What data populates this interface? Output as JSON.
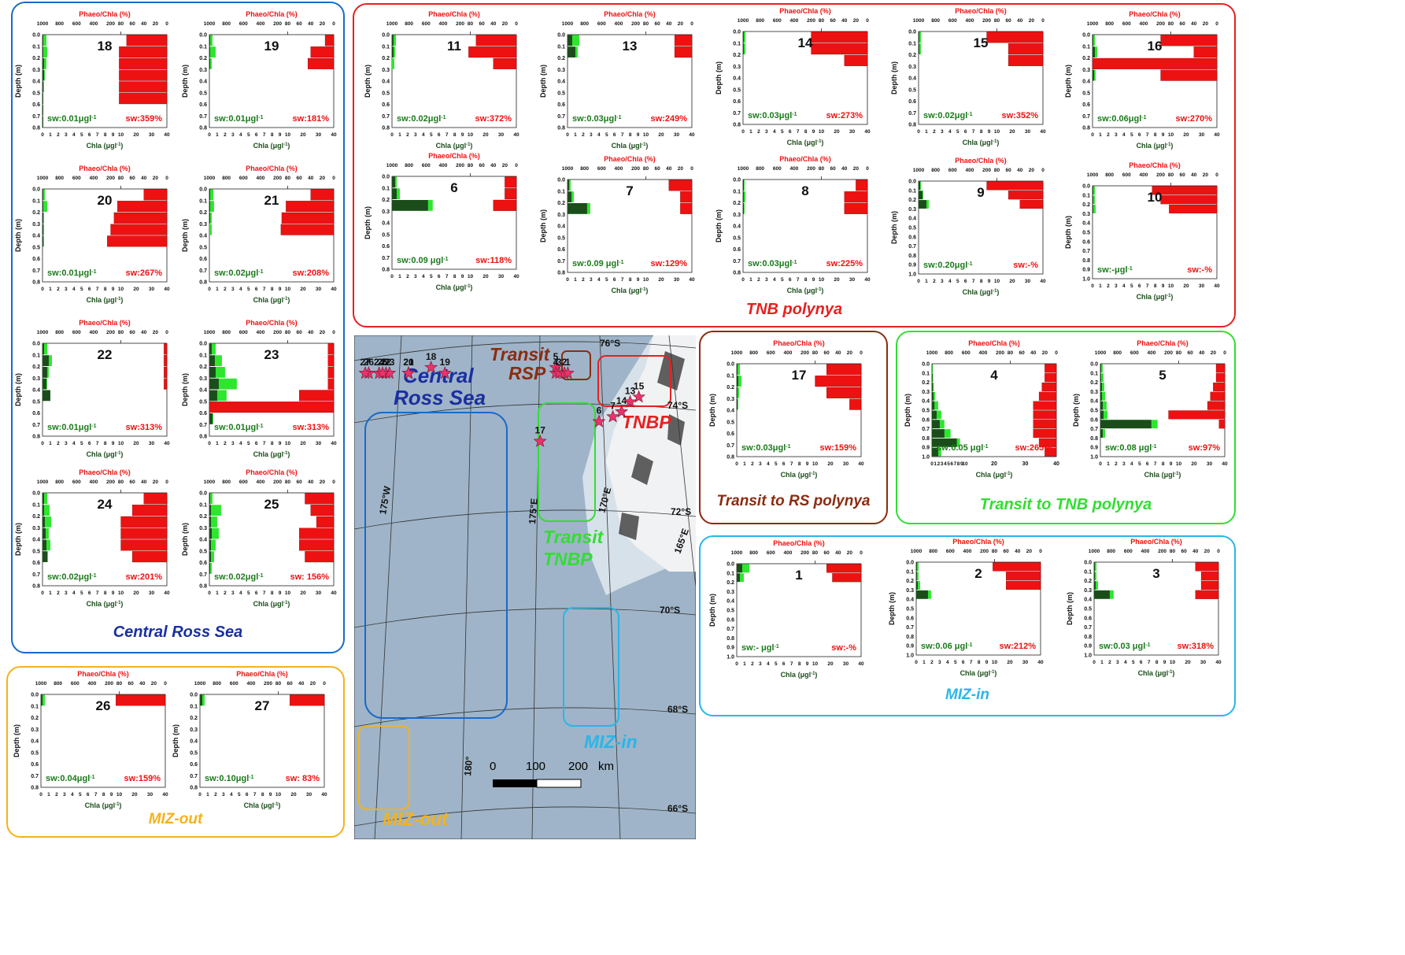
{
  "labels": {
    "phaeo_axis": "Phaeo/Chla (%)",
    "chla_axis": "Chla (μgl",
    "chla_sup": "-1",
    "chla_close": ")",
    "depth_axis": "Depth (m)",
    "phaeo_ticks": [
      "1000",
      "800",
      "600",
      "400",
      "200",
      "80",
      "60",
      "40",
      "20",
      "0"
    ],
    "chla_ticks": [
      "0",
      "1",
      "2",
      "3",
      "4",
      "5",
      "6",
      "7",
      "8",
      "9",
      "10",
      "20",
      "30",
      "40"
    ]
  },
  "colors": {
    "chla_dark": "#1b4d1b",
    "chla_light": "#2ee62e",
    "phaeo": "#ee1111",
    "central": "#1a6ac8",
    "tnb": "#e62020",
    "rsp": "#8b2c10",
    "transit_tnbp": "#33dd33",
    "miz_in": "#29b6e8",
    "miz_out": "#f5b21a"
  },
  "groups": [
    {
      "id": "central",
      "name": "Central Ross Sea"
    },
    {
      "id": "tnb",
      "name": "TNB polynya"
    },
    {
      "id": "rsp",
      "name": "Transit to RS polynya"
    },
    {
      "id": "transit_tnbp",
      "name": "Transit to TNB polynya"
    },
    {
      "id": "miz_in",
      "name": "MIZ-in"
    },
    {
      "id": "miz_out",
      "name": "MIZ-out"
    }
  ],
  "chart_data": [
    {
      "type": "bar",
      "station": "18",
      "group": "central",
      "ylim": [
        0,
        0.8
      ],
      "sw_chla": "sw:0.01μgl",
      "sw_phaeo": "sw:359%",
      "chla_dark": [
        0.1,
        0.1,
        0.2,
        0.2,
        0.1,
        0.1,
        0.1,
        0.1
      ],
      "chla_light": [
        0.5,
        0.6,
        0.5,
        0.3,
        0.2,
        0.1,
        0,
        0
      ],
      "phaeo": [
        70,
        100,
        100,
        100,
        100,
        100,
        0,
        0
      ]
    },
    {
      "type": "bar",
      "station": "19",
      "group": "central",
      "ylim": [
        0,
        0.8
      ],
      "sw_chla": "sw:0.01μgl",
      "sw_phaeo": "sw:181%",
      "chla_dark": [
        0.1,
        0.1,
        0.1,
        0,
        0,
        0,
        0,
        0
      ],
      "chla_light": [
        0.4,
        0.8,
        0.3,
        0,
        0,
        0,
        0,
        0
      ],
      "phaeo": [
        15,
        40,
        45,
        0,
        0,
        0,
        0,
        0
      ]
    },
    {
      "type": "bar",
      "station": "20",
      "group": "central",
      "ylim": [
        0,
        0.8
      ],
      "sw_chla": "sw:0.01μgl",
      "sw_phaeo": "sw:267%",
      "chla_dark": [
        0.1,
        0.1,
        0.1,
        0.1,
        0.1,
        0,
        0,
        0
      ],
      "chla_light": [
        0.3,
        0.6,
        0.2,
        0.2,
        0.2,
        0,
        0,
        0
      ],
      "phaeo": [
        40,
        120,
        160,
        200,
        240,
        0,
        0,
        0
      ]
    },
    {
      "type": "bar",
      "station": "21",
      "group": "central",
      "ylim": [
        0,
        0.8
      ],
      "sw_chla": "sw:0.02μgl",
      "sw_phaeo": "sw:208%",
      "chla_dark": [
        0.1,
        0.1,
        0.1,
        0,
        0,
        0,
        0,
        0
      ],
      "chla_light": [
        0.5,
        0.6,
        0.3,
        0.3,
        0,
        0,
        0,
        0
      ],
      "phaeo": [
        40,
        100,
        150,
        160,
        0,
        0,
        0,
        0
      ]
    },
    {
      "type": "bar",
      "station": "22",
      "group": "central",
      "ylim": [
        0,
        0.8
      ],
      "sw_chla": "sw:0.01μgl",
      "sw_phaeo": "sw:313%",
      "chla_dark": [
        0.2,
        0.8,
        0.6,
        0.5,
        1.0,
        0,
        0,
        0
      ],
      "chla_light": [
        0.6,
        1.2,
        0.8,
        0.6,
        0.3,
        0,
        0,
        0
      ],
      "phaeo": [
        5,
        5,
        5,
        5,
        0,
        0,
        0,
        0
      ]
    },
    {
      "type": "bar",
      "station": "23",
      "group": "central",
      "ylim": [
        0,
        0.8
      ],
      "sw_chla": "sw:0.01μgl",
      "sw_phaeo": "sw:313%",
      "chla_dark": [
        0.3,
        0.7,
        0.8,
        1.2,
        1.0,
        0.5,
        0.4,
        0
      ],
      "chla_light": [
        0.8,
        1.6,
        2.0,
        3.5,
        2.2,
        0.9,
        0.5,
        0
      ],
      "phaeo": [
        10,
        10,
        10,
        10,
        60,
        1000,
        0,
        0
      ]
    },
    {
      "type": "bar",
      "station": "24",
      "group": "central",
      "ylim": [
        0,
        0.8
      ],
      "sw_chla": "sw:0.02μgl",
      "sw_phaeo": "sw:201%",
      "chla_dark": [
        0.2,
        0.2,
        0.3,
        0.4,
        0.5,
        0.6,
        0,
        0
      ],
      "chla_light": [
        0.6,
        0.9,
        1.1,
        0.8,
        1.0,
        0.7,
        0,
        0
      ],
      "phaeo": [
        40,
        60,
        80,
        80,
        80,
        60,
        0,
        0
      ]
    },
    {
      "type": "bar",
      "station": "25",
      "group": "central",
      "ylim": [
        0,
        0.8
      ],
      "sw_chla": "sw:0.02μgl",
      "sw_phaeo": "sw:  156%",
      "chla_dark": [
        0.1,
        0.2,
        0.2,
        0.3,
        0.2,
        0.2,
        0.1,
        0
      ],
      "chla_light": [
        0.4,
        1.5,
        1.0,
        1.2,
        0.8,
        0.6,
        0.3,
        0
      ],
      "phaeo": [
        50,
        40,
        30,
        60,
        60,
        50,
        0,
        0
      ]
    },
    {
      "type": "bar",
      "station": "11",
      "group": "tnb",
      "ylim": [
        0,
        0.8
      ],
      "sw_chla": "sw:0.02μgl",
      "sw_phaeo": "sw:372%",
      "chla_dark": [
        0.2,
        0.2,
        0,
        0,
        0,
        0,
        0,
        0
      ],
      "chla_light": [
        0.5,
        0.4,
        0.3,
        0,
        0,
        0,
        0,
        0
      ],
      "phaeo": [
        70,
        100,
        40,
        0,
        0,
        0,
        0,
        0
      ]
    },
    {
      "type": "bar",
      "station": "13",
      "group": "tnb",
      "ylim": [
        0,
        0.8
      ],
      "sw_chla": "sw:0.03μgl",
      "sw_phaeo": "sw:249%",
      "chla_dark": [
        0.6,
        1.0,
        0,
        0,
        0,
        0,
        0,
        0
      ],
      "chla_light": [
        1.5,
        1.3,
        0,
        0,
        0,
        0,
        0,
        0
      ],
      "phaeo": [
        30,
        30,
        0,
        0,
        0,
        0,
        0,
        0
      ]
    },
    {
      "type": "bar",
      "station": "14",
      "group": "tnb",
      "ylim": [
        0,
        0.8
      ],
      "sw_chla": "sw:0.03μgl",
      "sw_phaeo": "sw:273%",
      "chla_dark": [
        0.1,
        0.1,
        0,
        0,
        0,
        0,
        0,
        0
      ],
      "chla_light": [
        0.3,
        0.3,
        0,
        0,
        0,
        0,
        0,
        0
      ],
      "phaeo": [
        200,
        200,
        40,
        0,
        0,
        0,
        0,
        0
      ]
    },
    {
      "type": "bar",
      "station": "15",
      "group": "tnb",
      "ylim": [
        0,
        0.8
      ],
      "sw_chla": "sw:0.02μgl",
      "sw_phaeo": "sw:352%",
      "chla_dark": [
        0.1,
        0.1,
        0,
        0,
        0,
        0,
        0,
        0
      ],
      "chla_light": [
        0.3,
        0.3,
        0,
        0,
        0,
        0,
        0,
        0
      ],
      "phaeo": [
        200,
        60,
        60,
        0,
        0,
        0,
        0,
        0
      ]
    },
    {
      "type": "bar",
      "station": "16",
      "group": "tnb",
      "ylim": [
        0,
        0.8
      ],
      "sw_chla": "sw:0.06μgl",
      "sw_phaeo": "sw:270%",
      "chla_dark": [
        0.1,
        0.3,
        0.6,
        0.2,
        0,
        0,
        0,
        0
      ],
      "chla_light": [
        0.3,
        0.6,
        1.0,
        0.4,
        0,
        0,
        0,
        0
      ],
      "phaeo": [
        200,
        40,
        1000,
        200,
        0,
        0,
        0,
        0
      ]
    },
    {
      "type": "bar",
      "station": "6",
      "group": "tnb",
      "ylim": [
        0,
        0.8
      ],
      "sw_chla": "sw:0.09 μgl",
      "sw_phaeo": "sw:118%",
      "chla_dark": [
        0.4,
        0.6,
        4.6,
        0,
        0,
        0,
        0,
        0
      ],
      "chla_light": [
        0.6,
        1.0,
        5.2,
        0,
        0,
        0,
        0,
        0
      ],
      "phaeo": [
        20,
        20,
        40,
        0,
        0,
        0,
        0,
        0
      ]
    },
    {
      "type": "bar",
      "station": "7",
      "group": "tnb",
      "ylim": [
        0,
        0.8
      ],
      "sw_chla": "sw:0.09 μgl",
      "sw_phaeo": "sw:129%",
      "chla_dark": [
        0.2,
        0.5,
        2.5,
        0,
        0,
        0,
        0,
        0
      ],
      "chla_light": [
        0.4,
        0.8,
        2.9,
        0,
        0,
        0,
        0,
        0
      ],
      "phaeo": [
        40,
        20,
        20,
        0,
        0,
        0,
        0,
        0
      ]
    },
    {
      "type": "bar",
      "station": "8",
      "group": "tnb",
      "ylim": [
        0,
        0.8
      ],
      "sw_chla": "sw:0.03μgl",
      "sw_phaeo": "sw:225%",
      "chla_dark": [
        0.1,
        0.1,
        0.1,
        0,
        0,
        0,
        0,
        0
      ],
      "chla_light": [
        0.2,
        0.3,
        0.2,
        0,
        0,
        0,
        0,
        0
      ],
      "phaeo": [
        20,
        40,
        40,
        0,
        0,
        0,
        0,
        0
      ]
    },
    {
      "type": "bar",
      "station": "9",
      "group": "tnb",
      "ylim": [
        0,
        1.0
      ],
      "sw_chla": "sw:0.20μgl",
      "sw_phaeo": "sw:-%",
      "chla_dark": [
        0.2,
        0.5,
        1.0,
        0,
        0,
        0,
        0,
        0,
        0,
        0
      ],
      "chla_light": [
        0.3,
        0.6,
        1.3,
        0,
        0,
        0,
        0,
        0,
        0,
        0
      ],
      "phaeo": [
        200,
        60,
        40,
        0,
        0,
        0,
        0,
        0,
        0,
        0
      ]
    },
    {
      "type": "bar",
      "station": "10",
      "group": "tnb",
      "ylim": [
        0,
        1.0
      ],
      "sw_chla": "sw:-μgl",
      "sw_phaeo": "sw:-%",
      "chla_dark": [
        0.1,
        0.1,
        0.1,
        0,
        0,
        0,
        0,
        0,
        0,
        0
      ],
      "chla_light": [
        0.3,
        0.3,
        0.4,
        0,
        0,
        0,
        0,
        0,
        0,
        0
      ],
      "phaeo": [
        300,
        200,
        100,
        0,
        0,
        0,
        0,
        0,
        0,
        0
      ]
    },
    {
      "type": "bar",
      "station": "17",
      "group": "rsp",
      "ylim": [
        0,
        0.8
      ],
      "sw_chla": "sw:0.03μgl",
      "sw_phaeo": "sw:159%",
      "chla_dark": [
        0.1,
        0.2,
        0.1,
        0.1,
        0,
        0,
        0,
        0
      ],
      "chla_light": [
        0.4,
        0.6,
        0.3,
        0.2,
        0,
        0,
        0,
        0
      ],
      "phaeo": [
        60,
        80,
        60,
        20,
        0,
        0,
        0,
        0
      ]
    },
    {
      "type": "bar",
      "station": "4",
      "group": "transit_tnbp",
      "ylim": [
        0,
        1.0
      ],
      "linear": true,
      "sw_chla": "sw:0.05 μgl",
      "sw_phaeo": "sw:265%",
      "chla_dark": [
        0.1,
        0.2,
        0.3,
        0.5,
        0.8,
        1.5,
        2.5,
        4,
        8,
        2
      ],
      "chla_light": [
        0.3,
        0.4,
        0.6,
        1,
        2,
        3,
        4,
        6,
        9,
        3
      ],
      "phaeo": [
        20,
        20,
        25,
        30,
        40,
        40,
        40,
        40,
        30,
        20
      ]
    },
    {
      "type": "bar",
      "station": "5",
      "group": "transit_tnbp",
      "ylim": [
        0,
        1.0
      ],
      "sw_chla": "sw:0.08 μgl",
      "sw_phaeo": "sw:97%",
      "chla_dark": [
        0.1,
        0.1,
        0.2,
        0.2,
        0.3,
        0.4,
        6.5,
        0.3,
        0,
        0
      ],
      "chla_light": [
        0.3,
        0.4,
        0.5,
        0.6,
        0.8,
        0.9,
        7.3,
        0.6,
        0,
        0
      ],
      "phaeo": [
        15,
        15,
        20,
        25,
        30,
        200,
        10,
        0,
        0,
        0
      ]
    },
    {
      "type": "bar",
      "station": "1",
      "group": "miz_in",
      "ylim": [
        0,
        1.0
      ],
      "sw_chla": "sw:- μgl",
      "sw_phaeo": "sw:-%",
      "chla_dark": [
        0.7,
        0.4,
        0,
        0,
        0,
        0,
        0,
        0,
        0,
        0
      ],
      "chla_light": [
        1.6,
        0.9,
        0,
        0,
        0,
        0,
        0,
        0,
        0,
        0
      ],
      "phaeo": [
        60,
        50,
        0,
        0,
        0,
        0,
        0,
        0,
        0,
        0
      ]
    },
    {
      "type": "bar",
      "station": "2",
      "group": "miz_in",
      "ylim": [
        0,
        1.0
      ],
      "sw_chla": "sw:0.06 μgl",
      "sw_phaeo": "sw:212%",
      "chla_dark": [
        0.1,
        0.1,
        0.2,
        1.5,
        0,
        0,
        0,
        0,
        0,
        0
      ],
      "chla_light": [
        0.3,
        0.3,
        0.5,
        1.9,
        0,
        0,
        0,
        0,
        0,
        0
      ],
      "phaeo": [
        100,
        60,
        60,
        0,
        0,
        0,
        0,
        0,
        0,
        0
      ]
    },
    {
      "type": "bar",
      "station": "3",
      "group": "miz_in",
      "ylim": [
        0,
        1.0
      ],
      "sw_chla": "sw:0.03 μgl",
      "sw_phaeo": "sw:318%",
      "chla_dark": [
        0.1,
        0.1,
        0.2,
        2.0,
        0,
        0,
        0,
        0,
        0,
        0
      ],
      "chla_light": [
        0.3,
        0.3,
        0.5,
        2.5,
        0,
        0,
        0,
        0,
        0,
        0
      ],
      "phaeo": [
        40,
        30,
        30,
        40,
        0,
        0,
        0,
        0,
        0,
        0
      ]
    },
    {
      "type": "bar",
      "station": "26",
      "group": "miz_out",
      "ylim": [
        0,
        0.8
      ],
      "sw_chla": "sw:0.04μgl",
      "sw_phaeo": "sw:159%",
      "chla_dark": [
        0.2,
        0,
        0,
        0,
        0,
        0,
        0,
        0
      ],
      "chla_light": [
        0.5,
        0,
        0,
        0,
        0,
        0,
        0,
        0
      ],
      "phaeo": [
        120,
        0,
        0,
        0,
        0,
        0,
        0,
        0
      ]
    },
    {
      "type": "bar",
      "station": "27",
      "group": "miz_out",
      "ylim": [
        0,
        0.8
      ],
      "sw_chla": "sw:0.10μgl",
      "sw_phaeo": "sw: 83%",
      "chla_dark": [
        0.3,
        0,
        0,
        0,
        0,
        0,
        0,
        0
      ],
      "chla_light": [
        0.6,
        0,
        0,
        0,
        0,
        0,
        0,
        0
      ],
      "phaeo": [
        60,
        0,
        0,
        0,
        0,
        0,
        0,
        0
      ]
    }
  ],
  "map": {
    "region_labels": [
      "Central",
      "Ross Sea",
      "Transit",
      "RSP",
      "Transit",
      "TNBP",
      "TNBP",
      "MIZ-in",
      "MIZ-out"
    ],
    "lat_labels": [
      "76°S",
      "74°S",
      "72°S",
      "70°S",
      "68°S",
      "66°S"
    ],
    "lon_labels": [
      "175°W",
      "175°E",
      "170°E",
      "165°E",
      "180°"
    ],
    "scale": {
      "labels": [
        "0",
        "100",
        "200",
        "km"
      ]
    },
    "stations": [
      {
        "id": "18",
        "lon": -177.8,
        "lat": -75.5
      },
      {
        "id": "19",
        "lon": -178.6,
        "lat": -74.9
      },
      {
        "id": "20",
        "lon": -176.5,
        "lat": -74.1
      },
      {
        "id": "21",
        "lon": -176.5,
        "lat": -73.5
      },
      {
        "id": "22",
        "lon": -175.2,
        "lat": -72.8
      },
      {
        "id": "23",
        "lon": -175.4,
        "lat": -72.2
      },
      {
        "id": "24",
        "lon": -174.8,
        "lat": -72.0
      },
      {
        "id": "25",
        "lon": -175.0,
        "lat": -69.7
      },
      {
        "id": "26",
        "lon": -174.2,
        "lat": -68.1
      },
      {
        "id": "27",
        "lon": -174.0,
        "lat": -67.5
      },
      {
        "id": "17",
        "lon": 175.9,
        "lat": -77.0
      },
      {
        "id": "5",
        "lon": 175.0,
        "lat": -75.5
      },
      {
        "id": "4",
        "lon": 175.0,
        "lat": -74.7
      },
      {
        "id": "3",
        "lon": 174.8,
        "lat": -71.5
      },
      {
        "id": "2",
        "lon": 174.5,
        "lat": -70.7
      },
      {
        "id": "1",
        "lon": 174.3,
        "lat": -70.4
      },
      {
        "id": "6",
        "lon": 172.5,
        "lat": -76.6
      },
      {
        "id": "7",
        "lon": 171.7,
        "lat": -76.5
      },
      {
        "id": "14",
        "lon": 171.2,
        "lat": -76.4
      },
      {
        "id": "13",
        "lon": 170.7,
        "lat": -76.2
      },
      {
        "id": "15",
        "lon": 170.2,
        "lat": -76.1
      }
    ]
  }
}
